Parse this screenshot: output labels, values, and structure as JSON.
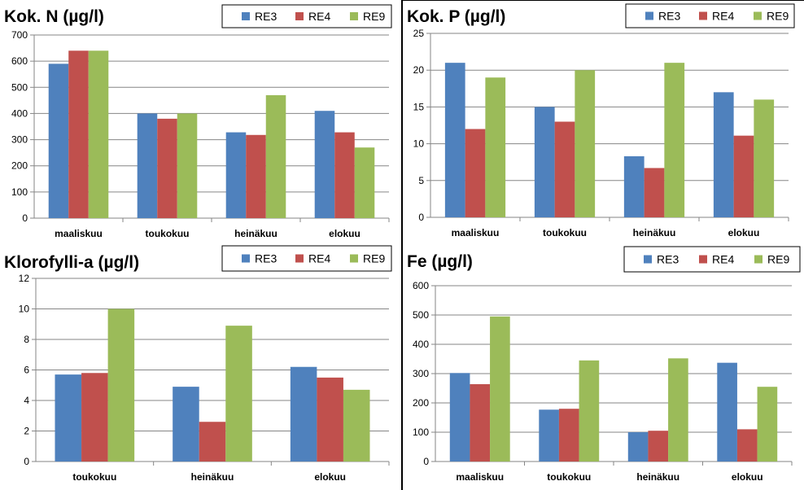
{
  "colors": {
    "RE3": "#4f81bd",
    "RE4": "#c0504d",
    "RE9": "#9bbb59"
  },
  "chart_data": [
    {
      "type": "bar",
      "title": "Kok. N (µg/l)",
      "categories": [
        "maaliskuu",
        "toukokuu",
        "heinäkuu",
        "elokuu"
      ],
      "series": [
        {
          "name": "RE3",
          "values": [
            590,
            400,
            328,
            410
          ]
        },
        {
          "name": "RE4",
          "values": [
            640,
            380,
            318,
            328
          ]
        },
        {
          "name": "RE9",
          "values": [
            640,
            400,
            470,
            270
          ]
        }
      ],
      "ylim": [
        0,
        700
      ],
      "yticks": [
        0,
        100,
        200,
        300,
        400,
        500,
        600,
        700
      ]
    },
    {
      "type": "bar",
      "title": "Kok. P (µg/l)",
      "categories": [
        "maaliskuu",
        "toukokuu",
        "heinäkuu",
        "elokuu"
      ],
      "series": [
        {
          "name": "RE3",
          "values": [
            21,
            15,
            8.3,
            17
          ]
        },
        {
          "name": "RE4",
          "values": [
            12,
            13,
            6.7,
            11.1
          ]
        },
        {
          "name": "RE9",
          "values": [
            19,
            20,
            21,
            16
          ]
        }
      ],
      "ylim": [
        0,
        25
      ],
      "yticks": [
        0,
        5,
        10,
        15,
        20,
        25
      ]
    },
    {
      "type": "bar",
      "title": "Klorofylli-a (µg/l)",
      "categories": [
        "toukokuu",
        "heinäkuu",
        "elokuu"
      ],
      "series": [
        {
          "name": "RE3",
          "values": [
            5.7,
            4.9,
            6.2
          ]
        },
        {
          "name": "RE4",
          "values": [
            5.8,
            2.6,
            5.5
          ]
        },
        {
          "name": "RE9",
          "values": [
            10,
            8.9,
            4.7
          ]
        }
      ],
      "ylim": [
        0,
        12
      ],
      "yticks": [
        0,
        2,
        4,
        6,
        8,
        10,
        12
      ]
    },
    {
      "type": "bar",
      "title": "Fe (µg/l)",
      "categories": [
        "maaliskuu",
        "toukokuu",
        "heinäkuu",
        "elokuu"
      ],
      "series": [
        {
          "name": "RE3",
          "values": [
            302,
            177,
            100,
            337
          ]
        },
        {
          "name": "RE4",
          "values": [
            264,
            180,
            105,
            110
          ]
        },
        {
          "name": "RE9",
          "values": [
            495,
            345,
            352,
            255
          ]
        }
      ],
      "ylim": [
        0,
        600
      ],
      "yticks": [
        0,
        100,
        200,
        300,
        400,
        500,
        600
      ]
    }
  ]
}
